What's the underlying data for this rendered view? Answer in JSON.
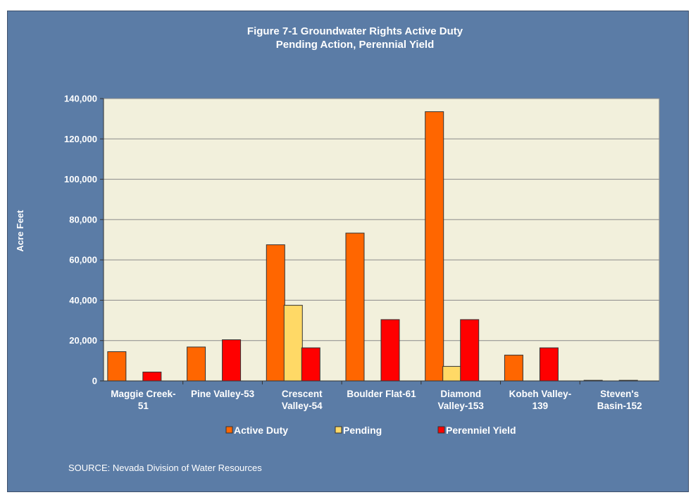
{
  "chart_data": {
    "type": "bar",
    "title": "Figure  7-1 Groundwater Rights Active Duty",
    "subtitle": "Pending Action, Perennial Yield",
    "xlabel": "",
    "ylabel": "Acre Feet",
    "ylim": [
      0,
      140000
    ],
    "yticks": [
      "0",
      "20,000",
      "40,000",
      "60,000",
      "80,000",
      "100,000",
      "120,000",
      "140,000"
    ],
    "grid": true,
    "legend_position": "bottom",
    "categories": [
      [
        "Maggie Creek-",
        "51"
      ],
      [
        "Pine Valley-53"
      ],
      [
        "Crescent",
        "Valley-54"
      ],
      [
        "Boulder Flat-61"
      ],
      [
        "Diamond",
        "Valley-153"
      ],
      [
        "Kobeh Valley-",
        "139"
      ],
      [
        "Steven's",
        "Basin-152"
      ]
    ],
    "series": [
      {
        "name": "Active Duty",
        "color": "#ff6600",
        "values": [
          14500,
          16800,
          67500,
          73300,
          133500,
          12800,
          300
        ]
      },
      {
        "name": "Pending",
        "color": "#ffd966",
        "values": [
          0,
          0,
          37500,
          0,
          7200,
          0,
          0
        ]
      },
      {
        "name": "Perenniel Yield",
        "color": "#ff0000",
        "values": [
          4400,
          20400,
          16400,
          30400,
          30400,
          16400,
          300
        ]
      }
    ]
  },
  "footer": {
    "source": "SOURCE: Nevada Division of Water Resources"
  }
}
